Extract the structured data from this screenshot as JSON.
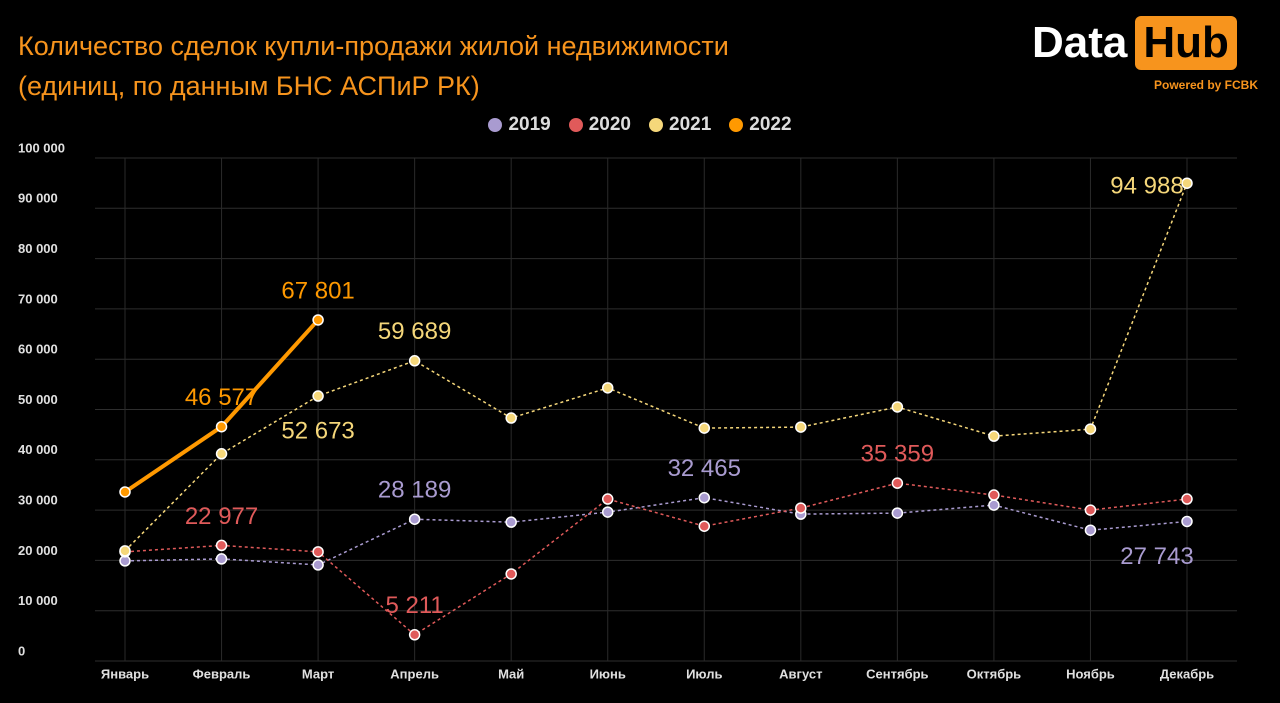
{
  "logo": {
    "left": "Data",
    "right": "Hub",
    "tagline": "Powered by FCBK"
  },
  "chart_data": {
    "type": "line",
    "title": "Количество сделок купли-продажи жилой недвижимости",
    "subtitle": "(единиц, по данным БНС АСПиР РК)",
    "categories": [
      "Январь",
      "Февраль",
      "Март",
      "Апрель",
      "Май",
      "Июнь",
      "Июль",
      "Август",
      "Сентябрь",
      "Октябрь",
      "Ноябрь",
      "Декабрь"
    ],
    "series": [
      {
        "name": "2019",
        "color": "#a99bd0",
        "values": [
          19900,
          20300,
          19100,
          28189,
          27600,
          29600,
          32465,
          29200,
          29400,
          31000,
          26000,
          27743
        ],
        "value_labels": [
          null,
          null,
          null,
          "28 189",
          null,
          null,
          "32 465",
          null,
          null,
          null,
          null,
          "27 743"
        ]
      },
      {
        "name": "2020",
        "color": "#e05a5a",
        "values": [
          21700,
          22977,
          21700,
          5211,
          17300,
          32200,
          26800,
          30400,
          35359,
          33000,
          30000,
          32200
        ],
        "value_labels": [
          null,
          "22 977",
          null,
          "5 211",
          null,
          null,
          null,
          null,
          "35 359",
          null,
          null,
          null
        ]
      },
      {
        "name": "2021",
        "color": "#f5d77a",
        "values": [
          21900,
          41200,
          52673,
          59689,
          48300,
          54300,
          46300,
          46500,
          50500,
          44700,
          46100,
          94988
        ],
        "value_labels": [
          null,
          null,
          "52 673",
          "59 689",
          null,
          null,
          null,
          null,
          null,
          null,
          null,
          "94 988"
        ]
      },
      {
        "name": "2022",
        "color": "#ff9900",
        "values": [
          33600,
          46577,
          67801,
          null,
          null,
          null,
          null,
          null,
          null,
          null,
          null,
          null
        ],
        "value_labels": [
          null,
          "46 577",
          "67 801",
          null,
          null,
          null,
          null,
          null,
          null,
          null,
          null,
          null
        ]
      }
    ],
    "ylim": [
      0,
      100000
    ],
    "yticks": [
      0,
      {
        "value": 10000,
        "label": "10 000"
      },
      {
        "value": 20000,
        "label": "20 000"
      },
      {
        "value": 30000,
        "label": "30 000"
      },
      {
        "value": 40000,
        "label": "40 000"
      },
      {
        "value": 50000,
        "label": "50 000"
      },
      {
        "value": 60000,
        "label": "60 000"
      },
      {
        "value": 70000,
        "label": "70 000"
      },
      {
        "value": 80000,
        "label": "80 000"
      },
      {
        "value": 90000,
        "label": "90 000"
      },
      {
        "value": 100000,
        "label": "100 000"
      }
    ],
    "grid": true
  }
}
